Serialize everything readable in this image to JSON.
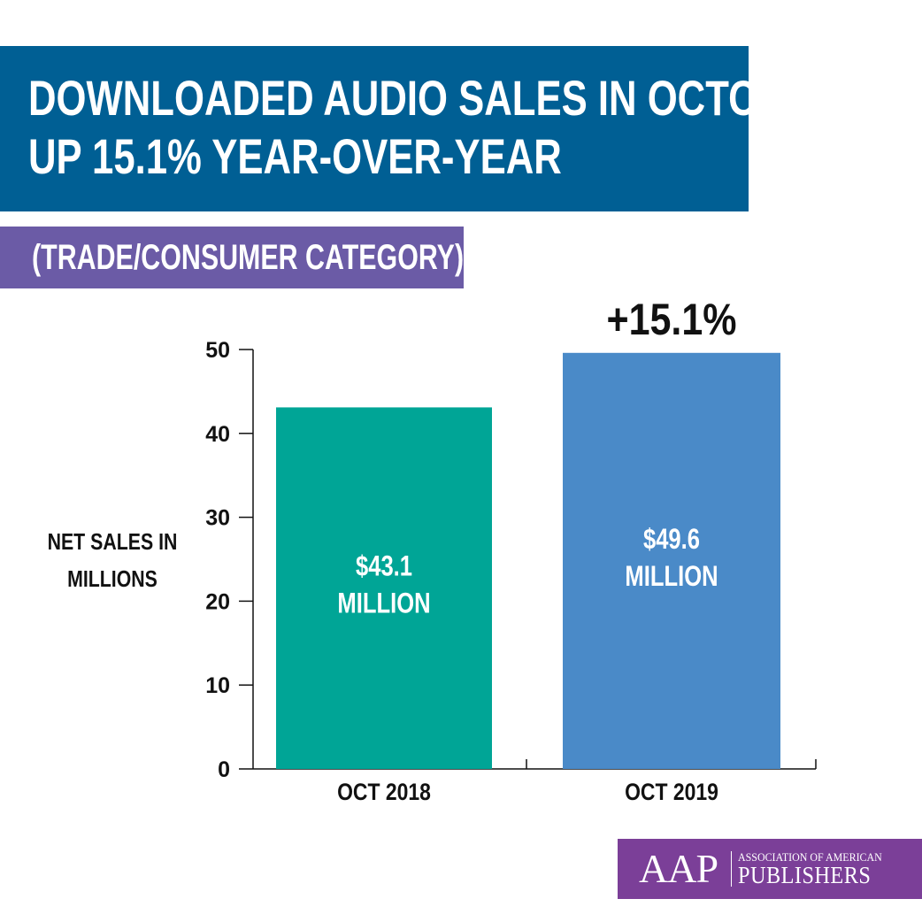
{
  "header": {
    "title_line1": "DOWNLOADED AUDIO SALES IN OCTOBER",
    "title_line2": "UP 15.1% YEAR-OVER-YEAR",
    "subtitle": "(TRADE/CONSUMER CATEGORY)"
  },
  "logo": {
    "abbr": "AAP",
    "line1": "ASSOCIATION OF AMERICAN",
    "line2": "PUBLISHERS"
  },
  "colors": {
    "title_bg": "#005f94",
    "subtitle_bg": "#6b5ba6",
    "bar_2018": "#00a596",
    "bar_2019": "#4a8ac8",
    "logo_bg": "#7b3f98"
  },
  "chart_data": {
    "type": "bar",
    "categories": [
      "OCT 2018",
      "OCT 2019"
    ],
    "values": [
      43.1,
      49.6
    ],
    "bar_labels": [
      [
        "$43.1",
        "MILLION"
      ],
      [
        "$49.6",
        "MILLION"
      ]
    ],
    "ylabel_lines": [
      "NET SALES IN",
      "MILLIONS"
    ],
    "ylim": [
      0,
      50
    ],
    "yticks": [
      0,
      10,
      20,
      30,
      40,
      50
    ],
    "annotation": "+15.1%",
    "grid": false
  }
}
